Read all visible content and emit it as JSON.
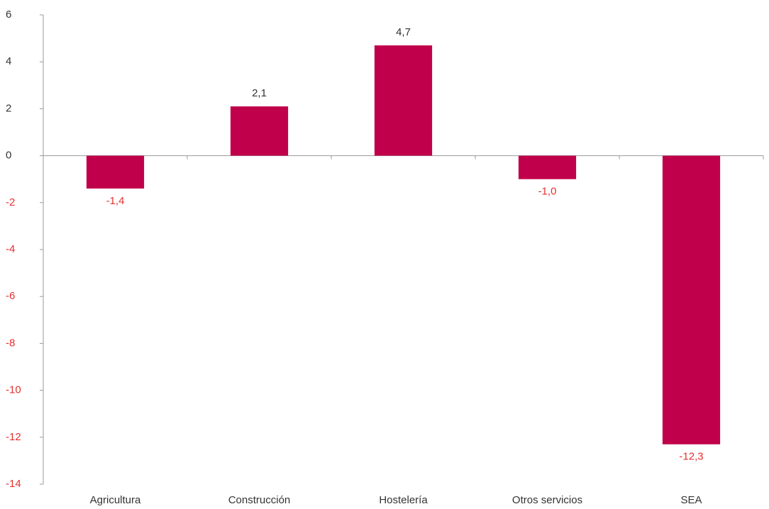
{
  "chart_data": {
    "type": "bar",
    "categories": [
      "Agricultura",
      "Construcción",
      "Hostelería",
      "Otros servicios",
      "SEA"
    ],
    "values": [
      -1.4,
      2.1,
      4.7,
      -1.0,
      -12.3
    ],
    "value_labels": [
      "-1,4",
      "2,1",
      "4,7",
      "-1,0",
      "-12,3"
    ],
    "color": "#c0004a",
    "negative_label_color": "#e5302f",
    "ylim": [
      -14,
      6
    ],
    "yticks": [
      -14,
      -12,
      -10,
      -8,
      -6,
      -4,
      -2,
      0,
      2,
      4,
      6
    ],
    "grid": false
  }
}
